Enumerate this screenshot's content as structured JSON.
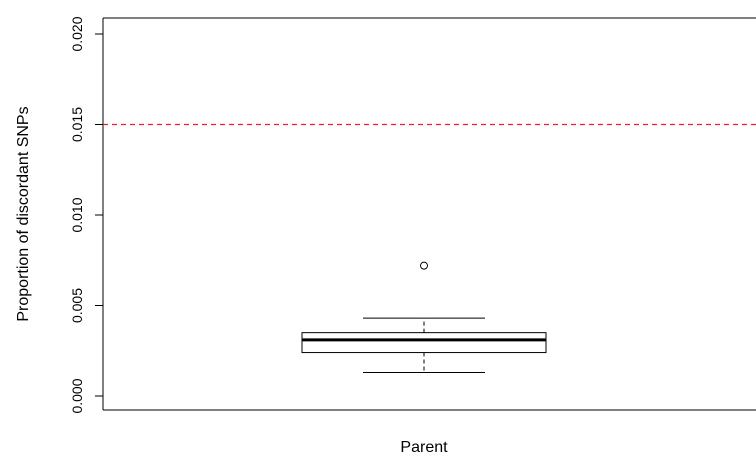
{
  "chart_data": {
    "type": "boxplot",
    "title": "",
    "xlabel": "",
    "ylabel": "Proportion of discordant SNPs",
    "ylim": [
      0.0,
      0.02
    ],
    "y_ticks": [
      "0.000",
      "0.005",
      "0.010",
      "0.015",
      "0.020"
    ],
    "y_tick_values": [
      0.0,
      0.005,
      0.01,
      0.015,
      0.02
    ],
    "grid": false,
    "legend": "none",
    "categories": [
      "Parent"
    ],
    "boxes": [
      {
        "category": "Parent",
        "whisker_low": 0.0013,
        "q1": 0.0024,
        "median": 0.0031,
        "q3": 0.0035,
        "whisker_high": 0.0043,
        "outliers": [
          0.0072
        ]
      }
    ],
    "reference_lines": [
      {
        "y": 0.015,
        "color": "#e8202a",
        "style": "dashed"
      }
    ]
  },
  "colors": {
    "axis": "#000000",
    "box_fill": "#ffffff",
    "reference_line": "#e8202a"
  }
}
